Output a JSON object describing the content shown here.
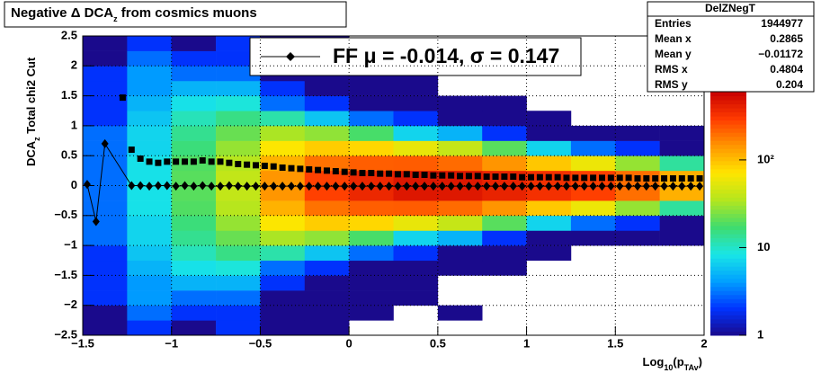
{
  "chart_data": {
    "type": "heatmap",
    "title": [
      "Negative Δ DCA",
      "z",
      " from cosmics muons"
    ],
    "x_label": [
      "Log",
      "10",
      "(p",
      "TAv",
      ")"
    ],
    "y_label": [
      "DCA",
      "z",
      "  Total chi2 Cut"
    ],
    "xlim": [
      -1.5,
      2
    ],
    "ylim": [
      -2.5,
      2.5
    ],
    "xticks": [
      {
        "value": -1.5,
        "label": "−1.5"
      },
      {
        "value": -1,
        "label": "−1"
      },
      {
        "value": -0.5,
        "label": "−0.5"
      },
      0,
      0.5,
      1,
      1.5,
      2
    ],
    "yticks": [
      {
        "value": -2.5,
        "label": "−2.5"
      },
      {
        "value": -2,
        "label": "−2"
      },
      {
        "value": -1.5,
        "label": "−1.5"
      },
      {
        "value": -1,
        "label": "−1"
      },
      {
        "value": -0.5,
        "label": "−0.5"
      },
      0,
      0.5,
      1,
      1.5,
      2,
      2.5
    ],
    "grid": true,
    "zlim": [
      1,
      600
    ],
    "zlog": true,
    "zticks": [
      1,
      10,
      {
        "value": 100,
        "label": "10²"
      }
    ],
    "palette": [
      "#1a0a8c",
      "#0033ff",
      "#00a0ff",
      "#19e6e6",
      "#3fdc6e",
      "#b4e61e",
      "#ffe600",
      "#ff9600",
      "#ff3c00",
      "#c80000"
    ],
    "xbins": [
      -1.5,
      -1.25,
      -1,
      -0.75,
      -0.5,
      -0.25,
      0,
      0.25,
      0.5,
      0.75,
      1,
      1.25,
      1.5,
      1.75,
      2
    ],
    "ybins": [
      -2.5,
      -2.25,
      -2,
      -1.75,
      -1.5,
      -1.25,
      -1,
      -0.75,
      -0.5,
      -0.25,
      0,
      0.25,
      0.5,
      0.75,
      1,
      1.25,
      1.5,
      1.75,
      2,
      2.25,
      2.5
    ],
    "z": [
      [
        1,
        1,
        2,
        2,
        2,
        2,
        3,
        3,
        3,
        3,
        3,
        3,
        3,
        3,
        2,
        2,
        2,
        2,
        1,
        1
      ],
      [
        2,
        3,
        4,
        4,
        5,
        6,
        7,
        7,
        8,
        8,
        8,
        8,
        7,
        7,
        6,
        5,
        4,
        4,
        3,
        2
      ],
      [
        1,
        2,
        3,
        5,
        8,
        11,
        14,
        16,
        19,
        20,
        20,
        19,
        16,
        14,
        11,
        8,
        5,
        3,
        2,
        1
      ],
      [
        2,
        2,
        3,
        5,
        9,
        15,
        22,
        29,
        36,
        40,
        40,
        36,
        29,
        22,
        15,
        9,
        5,
        3,
        2,
        2
      ],
      [
        1,
        1,
        1,
        2,
        3,
        12,
        33,
        69,
        113,
        145,
        145,
        113,
        69,
        33,
        12,
        3,
        2,
        1,
        1,
        1
      ],
      [
        1,
        1,
        1,
        1,
        2,
        6,
        28,
        89,
        193,
        286,
        286,
        193,
        89,
        28,
        6,
        2,
        1,
        1,
        1,
        1
      ],
      [
        0,
        1,
        1,
        1,
        1,
        3,
        18,
        81,
        226,
        375,
        375,
        226,
        81,
        18,
        3,
        1,
        1,
        1,
        1,
        0
      ],
      [
        0,
        0,
        1,
        1,
        1,
        2,
        7,
        57,
        229,
        458,
        458,
        229,
        57,
        7,
        2,
        1,
        1,
        1,
        0,
        0
      ],
      [
        0,
        1,
        0,
        0,
        1,
        1,
        5,
        41,
        203,
        452,
        452,
        203,
        41,
        5,
        1,
        1,
        0,
        0,
        1,
        0
      ],
      [
        0,
        0,
        0,
        0,
        1,
        1,
        2,
        20,
        146,
        397,
        397,
        146,
        20,
        2,
        1,
        1,
        0,
        0,
        0,
        0
      ],
      [
        0,
        0,
        0,
        0,
        0,
        1,
        1,
        7,
        94,
        341,
        341,
        94,
        7,
        1,
        1,
        0,
        0,
        0,
        0,
        0
      ],
      [
        0,
        0,
        0,
        0,
        0,
        0,
        1,
        3,
        60,
        288,
        288,
        60,
        3,
        1,
        0,
        0,
        0,
        0,
        0,
        0
      ],
      [
        0,
        0,
        0,
        0,
        0,
        0,
        1,
        2,
        29,
        197,
        197,
        29,
        2,
        1,
        0,
        0,
        0,
        0,
        0,
        0
      ],
      [
        0,
        0,
        0,
        0,
        0,
        0,
        1,
        1,
        13,
        115,
        115,
        13,
        1,
        1,
        0,
        0,
        0,
        0,
        0,
        0
      ]
    ],
    "profiles": [
      {
        "marker": "square",
        "color": "#000000",
        "x": [
          -1.275,
          -1.225,
          -1.175,
          -1.125,
          -1.075,
          -1.025,
          -0.975,
          -0.925,
          -0.875,
          -0.825,
          -0.775,
          -0.725,
          -0.675,
          -0.625,
          -0.575,
          -0.525,
          -0.475,
          -0.425,
          -0.375,
          -0.325,
          -0.275,
          -0.225,
          -0.175,
          -0.125,
          -0.075,
          -0.025,
          0.025,
          0.075,
          0.125,
          0.175,
          0.225,
          0.275,
          0.325,
          0.375,
          0.425,
          0.475,
          0.525,
          0.575,
          0.625,
          0.675,
          0.725,
          0.775,
          0.825,
          0.875,
          0.925,
          0.975,
          1.025,
          1.075,
          1.125,
          1.175,
          1.225,
          1.275,
          1.325,
          1.375,
          1.425,
          1.475,
          1.525,
          1.575,
          1.625,
          1.675,
          1.725,
          1.775,
          1.825,
          1.875,
          1.925,
          1.975
        ],
        "values": [
          1.47,
          0.6,
          0.45,
          0.4,
          0.38,
          0.4,
          0.4,
          0.4,
          0.4,
          0.42,
          0.4,
          0.4,
          0.38,
          0.36,
          0.35,
          0.34,
          0.33,
          0.32,
          0.3,
          0.29,
          0.28,
          0.27,
          0.26,
          0.25,
          0.24,
          0.23,
          0.22,
          0.21,
          0.21,
          0.2,
          0.2,
          0.19,
          0.19,
          0.18,
          0.18,
          0.17,
          0.17,
          0.17,
          0.16,
          0.16,
          0.16,
          0.15,
          0.15,
          0.15,
          0.15,
          0.14,
          0.14,
          0.14,
          0.14,
          0.14,
          0.13,
          0.13,
          0.13,
          0.13,
          0.13,
          0.13,
          0.13,
          0.13,
          0.12,
          0.12,
          0.12,
          0.12,
          0.12,
          0.12,
          0.12,
          0.12
        ]
      },
      {
        "name": "FF μ = -0.014, σ =   0.147",
        "marker": "diamond",
        "color": "#000000",
        "x": [
          -1.475,
          -1.425,
          -1.375,
          -1.225,
          -1.175,
          -1.125,
          -1.075,
          -1.025,
          -0.975,
          -0.925,
          -0.875,
          -0.825,
          -0.775,
          -0.725,
          -0.675,
          -0.625,
          -0.575,
          -0.525,
          -0.475,
          -0.425,
          -0.375,
          -0.325,
          -0.275,
          -0.225,
          -0.175,
          -0.125,
          -0.075,
          -0.025,
          0.025,
          0.075,
          0.125,
          0.175,
          0.225,
          0.275,
          0.325,
          0.375,
          0.425,
          0.475,
          0.525,
          0.575,
          0.625,
          0.675,
          0.725,
          0.775,
          0.825,
          0.875,
          0.925,
          0.975,
          1.025,
          1.075,
          1.125,
          1.175,
          1.225,
          1.275,
          1.325,
          1.375,
          1.425,
          1.475,
          1.525,
          1.575,
          1.625,
          1.675,
          1.725,
          1.775,
          1.825,
          1.875,
          1.925,
          1.975
        ],
        "values": [
          0.02,
          -0.6,
          0.7,
          0.0,
          0.0,
          -0.01,
          0.0,
          0.0,
          -0.01,
          0.0,
          -0.01,
          0.0,
          -0.01,
          -0.01,
          0.0,
          -0.01,
          -0.01,
          -0.01,
          -0.01,
          -0.01,
          -0.01,
          -0.01,
          -0.01,
          -0.01,
          -0.01,
          -0.01,
          -0.01,
          -0.01,
          -0.01,
          -0.01,
          -0.01,
          -0.01,
          -0.01,
          -0.01,
          -0.01,
          -0.01,
          -0.01,
          -0.01,
          -0.01,
          -0.01,
          -0.01,
          -0.01,
          -0.01,
          -0.01,
          -0.01,
          -0.01,
          -0.01,
          -0.01,
          -0.01,
          -0.01,
          -0.01,
          -0.01,
          -0.01,
          -0.01,
          -0.01,
          -0.01,
          -0.01,
          -0.01,
          -0.01,
          -0.01,
          -0.01,
          -0.01,
          -0.01,
          -0.01,
          -0.01,
          -0.01,
          -0.01,
          -0.01
        ]
      }
    ],
    "stats": {
      "title": "DelZNegT",
      "rows": [
        [
          "Entries",
          1944977
        ],
        [
          "Mean x",
          0.2865
        ],
        [
          "Mean y",
          "−0.01172"
        ],
        [
          "RMS x",
          0.4804
        ],
        [
          "RMS y",
          0.204
        ]
      ]
    }
  }
}
